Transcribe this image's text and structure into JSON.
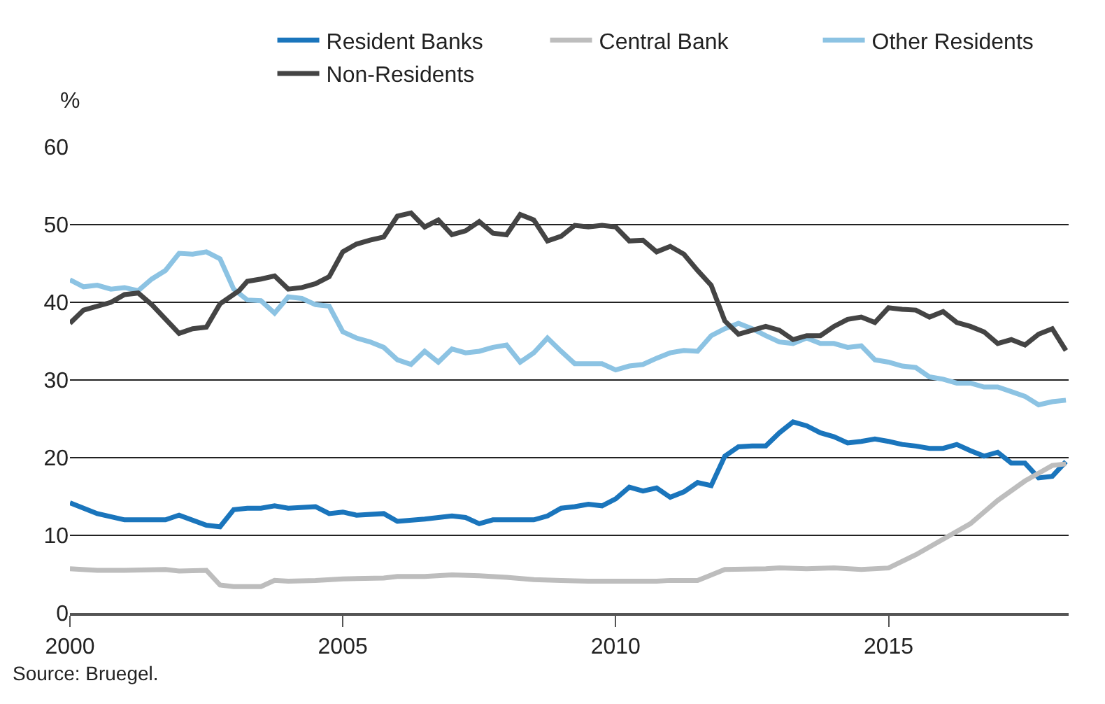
{
  "chart_data": {
    "type": "line",
    "ylabel": "%",
    "xlim": [
      2000,
      2018.3
    ],
    "xticks": [
      2000,
      2005,
      2010,
      2015
    ],
    "ylim": [
      0,
      60
    ],
    "yticks": [
      0,
      10,
      20,
      30,
      40,
      50,
      60
    ],
    "grid": "y",
    "legend": "top right",
    "line_style": "solid",
    "marker": "none",
    "annotations": [
      "Source: Bruegel."
    ],
    "series": [
      {
        "name": "Resident Banks",
        "color": "#1a75bc",
        "x": [
          2000,
          2000.5,
          2001,
          2001.5,
          2001.75,
          2002,
          2002.5,
          2002.75,
          2003,
          2003.25,
          2003.5,
          2003.75,
          2004,
          2004.5,
          2004.75,
          2005,
          2005.25,
          2005.75,
          2006,
          2006.5,
          2007,
          2007.25,
          2007.5,
          2007.75,
          2008.5,
          2008.75,
          2009,
          2009.25,
          2009.5,
          2009.75,
          2010,
          2010.25,
          2010.5,
          2010.75,
          2011,
          2011.25,
          2011.5,
          2011.75,
          2012,
          2012.25,
          2012.5,
          2012.75,
          2013,
          2013.25,
          2013.5,
          2013.75,
          2014,
          2014.25,
          2014.5,
          2014.75,
          2015,
          2015.25,
          2015.5,
          2015.75,
          2016,
          2016.25,
          2016.5,
          2016.75,
          2017,
          2017.25,
          2017.5,
          2017.75,
          2018,
          2018.25
        ],
        "values": [
          14.2,
          12.8,
          12,
          12,
          12,
          12.6,
          11.3,
          11.1,
          13.3,
          13.5,
          13.5,
          13.8,
          13.5,
          13.7,
          12.8,
          13,
          12.6,
          12.8,
          11.8,
          12.1,
          12.5,
          12.3,
          11.5,
          12,
          12,
          12.5,
          13.5,
          13.7,
          14,
          13.8,
          14.7,
          16.2,
          15.7,
          16.1,
          14.9,
          15.6,
          16.8,
          16.4,
          20.2,
          21.4,
          21.5,
          21.5,
          23.2,
          24.6,
          24.1,
          23.2,
          22.7,
          21.9,
          22.1,
          22.4,
          22.1,
          21.7,
          21.5,
          21.2,
          21.2,
          21.7,
          20.9,
          20.2,
          20.7,
          19.3,
          19.3,
          17.4,
          17.6,
          19.5
        ]
      },
      {
        "name": "Central Bank",
        "color": "#bdbdbd",
        "x": [
          2000,
          2000.5,
          2001,
          2001.75,
          2002,
          2002.5,
          2002.75,
          2003,
          2003.5,
          2003.75,
          2004,
          2004.5,
          2005,
          2005.75,
          2006,
          2006.5,
          2007,
          2007.5,
          2008,
          2008.5,
          2009,
          2009.5,
          2010,
          2010.75,
          2011,
          2011.5,
          2012,
          2012.75,
          2013,
          2013.5,
          2014,
          2014.5,
          2015,
          2015.5,
          2016,
          2016.5,
          2017,
          2017.5,
          2017.75,
          2018,
          2018.25
        ],
        "values": [
          5.7,
          5.5,
          5.5,
          5.6,
          5.4,
          5.5,
          3.6,
          3.4,
          3.4,
          4.2,
          4.1,
          4.2,
          4.4,
          4.5,
          4.7,
          4.7,
          4.9,
          4.8,
          4.6,
          4.3,
          4.2,
          4.1,
          4.1,
          4.1,
          4.2,
          4.2,
          5.6,
          5.7,
          5.8,
          5.7,
          5.8,
          5.6,
          5.8,
          7.5,
          9.5,
          11.5,
          14.5,
          17,
          18,
          19,
          19.2
        ]
      },
      {
        "name": "Other Residents",
        "color": "#8cc3e3",
        "x": [
          2000,
          2000.25,
          2000.5,
          2000.75,
          2001,
          2001.25,
          2001.5,
          2001.75,
          2002,
          2002.25,
          2002.5,
          2002.75,
          2003,
          2003.25,
          2003.5,
          2003.75,
          2004,
          2004.25,
          2004.5,
          2004.75,
          2005,
          2005.25,
          2005.5,
          2005.75,
          2006,
          2006.25,
          2006.5,
          2006.75,
          2007,
          2007.25,
          2007.5,
          2007.75,
          2008,
          2008.25,
          2008.5,
          2008.75,
          2009,
          2009.25,
          2009.5,
          2009.75,
          2010,
          2010.25,
          2010.5,
          2010.75,
          2011,
          2011.25,
          2011.5,
          2011.75,
          2012,
          2012.25,
          2012.5,
          2012.75,
          2013,
          2013.25,
          2013.5,
          2013.75,
          2014,
          2014.25,
          2014.5,
          2014.75,
          2015,
          2015.25,
          2015.5,
          2015.75,
          2016,
          2016.25,
          2016.5,
          2016.75,
          2017,
          2017.25,
          2017.5,
          2017.75,
          2018,
          2018.25
        ],
        "values": [
          42.9,
          42,
          42.2,
          41.7,
          41.9,
          41.5,
          43,
          44.1,
          46.3,
          46.2,
          46.5,
          45.6,
          41.7,
          40.3,
          40.2,
          38.6,
          40.7,
          40.5,
          39.7,
          39.5,
          36.2,
          35.4,
          34.9,
          34.2,
          32.6,
          32,
          33.7,
          32.3,
          34,
          33.5,
          33.7,
          34.2,
          34.5,
          32.3,
          33.5,
          35.4,
          33.7,
          32.1,
          32.1,
          32.1,
          31.3,
          31.8,
          32,
          32.8,
          33.5,
          33.8,
          33.7,
          35.7,
          36.6,
          37.3,
          36.6,
          35.7,
          34.9,
          34.7,
          35.4,
          34.7,
          34.7,
          34.2,
          34.4,
          32.6,
          32.3,
          31.8,
          31.6,
          30.4,
          30.1,
          29.6,
          29.6,
          29.1,
          29.1,
          28.5,
          27.9,
          26.8,
          27.2,
          27.4
        ]
      },
      {
        "name": "Non-Residents",
        "color": "#444444",
        "x": [
          2000,
          2000.25,
          2000.75,
          2001,
          2001.25,
          2001.5,
          2002,
          2002.25,
          2002.5,
          2002.75,
          2003.1,
          2003.25,
          2003.5,
          2003.75,
          2004,
          2004.25,
          2004.5,
          2004.75,
          2005,
          2005.25,
          2005.5,
          2005.75,
          2006,
          2006.25,
          2006.5,
          2006.75,
          2007,
          2007.25,
          2007.5,
          2007.75,
          2008,
          2008.25,
          2008.5,
          2008.75,
          2009,
          2009.25,
          2009.5,
          2009.75,
          2010,
          2010.25,
          2010.5,
          2010.75,
          2011,
          2011.25,
          2011.5,
          2011.75,
          2012,
          2012.25,
          2012.75,
          2013,
          2013.25,
          2013.5,
          2013.75,
          2014,
          2014.25,
          2014.5,
          2014.75,
          2015,
          2015.25,
          2015.5,
          2015.75,
          2016,
          2016.25,
          2016.5,
          2016.75,
          2017,
          2017.25,
          2017.5,
          2017.75,
          2018,
          2018.25
        ],
        "values": [
          37.3,
          39,
          40,
          41,
          41.2,
          39.7,
          36,
          36.6,
          36.8,
          39.8,
          41.5,
          42.7,
          43,
          43.4,
          41.7,
          41.9,
          42.4,
          43.3,
          46.5,
          47.5,
          48,
          48.4,
          51.1,
          51.5,
          49.7,
          50.6,
          48.7,
          49.2,
          50.4,
          48.9,
          48.7,
          51.3,
          50.6,
          47.9,
          48.5,
          49.9,
          49.7,
          49.9,
          49.7,
          47.9,
          48,
          46.5,
          47.2,
          46.2,
          44.1,
          42.2,
          37.6,
          35.9,
          36.9,
          36.4,
          35.2,
          35.7,
          35.7,
          36.9,
          37.8,
          38.1,
          37.4,
          39.3,
          39.1,
          39,
          38.1,
          38.8,
          37.4,
          36.9,
          36.2,
          34.7,
          35.2,
          34.5,
          35.9,
          36.6,
          33.8
        ]
      }
    ]
  }
}
